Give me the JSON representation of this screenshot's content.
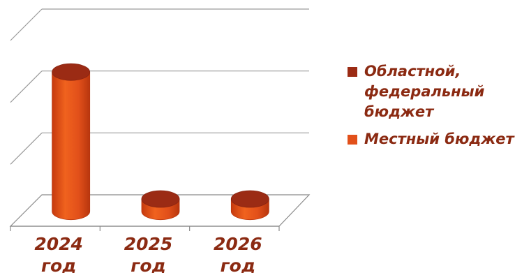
{
  "chart_data": {
    "type": "bar",
    "style": "3d-cylinder",
    "categories": [
      "2024 год",
      "2025 год",
      "2026 год"
    ],
    "series": [
      {
        "name": "Областной, федеральный бюджет",
        "color": "#9B2B14",
        "values": [
          0,
          0,
          0
        ]
      },
      {
        "name": "Местный бюджет",
        "color": "#E2501A",
        "values": [
          2.25,
          0.2,
          0.2
        ]
      }
    ],
    "ylim": [
      0,
      3
    ],
    "grid": true,
    "legend": "right"
  }
}
